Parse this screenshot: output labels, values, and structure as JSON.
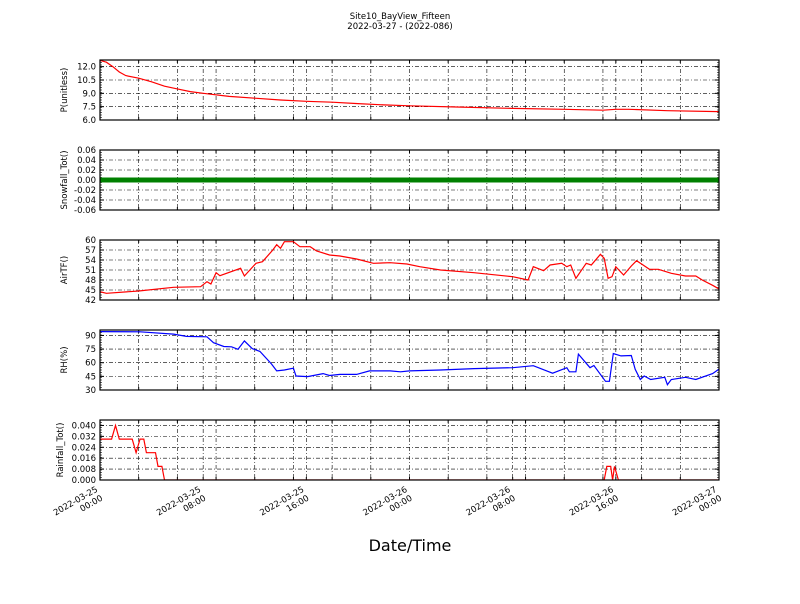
{
  "title": "Site10_BayView_Fifteen",
  "subtitle": "2022-03-27 - (2022-086)",
  "xlabel": "Date/Time",
  "chart_data": [
    {
      "type": "line",
      "ylabel": "P(unitless)",
      "color": "#ff0000",
      "xlim": [
        "2022-03-25 00:00",
        "2022-03-27 00:00"
      ],
      "ylim": [
        6.0,
        12.75
      ],
      "yticks": [
        "6.0",
        "7.5",
        "9.0",
        "10.5",
        "12.0"
      ],
      "grid": true,
      "points": [
        [
          "2022-03-25 00:00",
          12.7
        ],
        [
          "2022-03-25 00:30",
          12.5
        ],
        [
          "2022-03-25 01:00",
          12.0
        ],
        [
          "2022-03-25 01:30",
          11.4
        ],
        [
          "2022-03-25 02:00",
          11.0
        ],
        [
          "2022-03-25 03:00",
          10.7
        ],
        [
          "2022-03-25 04:00",
          10.3
        ],
        [
          "2022-03-25 05:00",
          9.8
        ],
        [
          "2022-03-25 06:00",
          9.5
        ],
        [
          "2022-03-25 07:00",
          9.2
        ],
        [
          "2022-03-25 08:00",
          9.0
        ],
        [
          "2022-03-25 10:00",
          8.65
        ],
        [
          "2022-03-25 12:00",
          8.45
        ],
        [
          "2022-03-25 14:00",
          8.25
        ],
        [
          "2022-03-25 16:00",
          8.1
        ],
        [
          "2022-03-25 18:00",
          8.0
        ],
        [
          "2022-03-25 20:00",
          7.85
        ],
        [
          "2022-03-25 22:00",
          7.7
        ],
        [
          "2022-03-26 00:00",
          7.6
        ],
        [
          "2022-03-26 04:00",
          7.45
        ],
        [
          "2022-03-26 08:00",
          7.3
        ],
        [
          "2022-03-26 12:00",
          7.2
        ],
        [
          "2022-03-26 15:00",
          7.1
        ],
        [
          "2022-03-26 16:00",
          7.2
        ],
        [
          "2022-03-26 17:00",
          7.2
        ],
        [
          "2022-03-26 20:00",
          7.05
        ],
        [
          "2022-03-27 00:00",
          6.95
        ]
      ]
    },
    {
      "type": "line",
      "ylabel": "Snowfall_Tot()",
      "color": "#008000",
      "xlim": [
        "2022-03-25 00:00",
        "2022-03-27 00:00"
      ],
      "ylim": [
        -0.06,
        0.06
      ],
      "yticks": [
        "-0.06",
        "-0.04",
        "-0.02",
        "0.00",
        "0.02",
        "0.04",
        "0.06"
      ],
      "grid": true,
      "points": [
        [
          "2022-03-25 00:00",
          0
        ],
        [
          "2022-03-27 00:00",
          0
        ]
      ]
    },
    {
      "type": "line",
      "ylabel": "AirTF()",
      "color": "#ff0000",
      "xlim": [
        "2022-03-25 00:00",
        "2022-03-27 00:00"
      ],
      "ylim": [
        42,
        60
      ],
      "yticks": [
        "42",
        "45",
        "48",
        "51",
        "54",
        "57",
        "60"
      ],
      "grid": true,
      "points": [
        [
          "2022-03-25 00:00",
          44.5
        ],
        [
          "2022-03-25 00:30",
          44.0
        ],
        [
          "2022-03-25 03:00",
          44.7
        ],
        [
          "2022-03-25 05:42",
          45.8
        ],
        [
          "2022-03-25 07:48",
          46.0
        ],
        [
          "2022-03-25 08:18",
          47.5
        ],
        [
          "2022-03-25 08:36",
          46.8
        ],
        [
          "2022-03-25 09:00",
          50.2
        ],
        [
          "2022-03-25 09:18",
          49.3
        ],
        [
          "2022-03-25 10:54",
          51.5
        ],
        [
          "2022-03-25 11:12",
          49.2
        ],
        [
          "2022-03-25 12:06",
          53.0
        ],
        [
          "2022-03-25 12:36",
          53.5
        ],
        [
          "2022-03-25 13:24",
          57.0
        ],
        [
          "2022-03-25 13:42",
          58.6
        ],
        [
          "2022-03-25 14:00",
          57.5
        ],
        [
          "2022-03-25 14:18",
          59.5
        ],
        [
          "2022-03-25 15:00",
          59.5
        ],
        [
          "2022-03-25 15:30",
          58.0
        ],
        [
          "2022-03-25 16:18",
          58.0
        ],
        [
          "2022-03-25 16:48",
          56.7
        ],
        [
          "2022-03-25 17:48",
          55.5
        ],
        [
          "2022-03-25 18:36",
          55.2
        ],
        [
          "2022-03-25 19:54",
          54.3
        ],
        [
          "2022-03-25 21:12",
          53.0
        ],
        [
          "2022-03-25 22:30",
          53.2
        ],
        [
          "2022-03-25 23:48",
          52.8
        ],
        [
          "2022-03-26 00:48",
          52.0
        ],
        [
          "2022-03-26 02:24",
          51.0
        ],
        [
          "2022-03-26 05:00",
          50.2
        ],
        [
          "2022-03-26 08:00",
          49.0
        ],
        [
          "2022-03-26 09:12",
          48.0
        ],
        [
          "2022-03-26 09:36",
          52.0
        ],
        [
          "2022-03-26 10:24",
          50.8
        ],
        [
          "2022-03-26 10:54",
          52.5
        ],
        [
          "2022-03-26 11:48",
          53.0
        ],
        [
          "2022-03-26 12:12",
          52.0
        ],
        [
          "2022-03-26 12:30",
          52.5
        ],
        [
          "2022-03-26 12:54",
          48.5
        ],
        [
          "2022-03-26 13:42",
          53.0
        ],
        [
          "2022-03-26 14:06",
          52.5
        ],
        [
          "2022-03-26 14:48",
          55.7
        ],
        [
          "2022-03-26 15:06",
          54.5
        ],
        [
          "2022-03-26 15:24",
          48.5
        ],
        [
          "2022-03-26 15:42",
          49.0
        ],
        [
          "2022-03-26 16:00",
          52.0
        ],
        [
          "2022-03-26 16:36",
          49.5
        ],
        [
          "2022-03-26 17:12",
          52.2
        ],
        [
          "2022-03-26 17:36",
          53.8
        ],
        [
          "2022-03-26 18:00",
          52.8
        ],
        [
          "2022-03-26 18:36",
          51.2
        ],
        [
          "2022-03-26 19:18",
          51.2
        ],
        [
          "2022-03-26 20:18",
          50.0
        ],
        [
          "2022-03-26 21:24",
          49.2
        ],
        [
          "2022-03-26 22:12",
          49.2
        ],
        [
          "2022-03-26 22:42",
          48.0
        ],
        [
          "2022-03-26 23:30",
          46.4
        ],
        [
          "2022-03-27 00:00",
          45.3
        ]
      ]
    },
    {
      "type": "line",
      "ylabel": "RH(%)",
      "color": "#0000ff",
      "xlim": [
        "2022-03-25 00:00",
        "2022-03-27 00:00"
      ],
      "ylim": [
        30,
        96
      ],
      "yticks": [
        "30",
        "45",
        "60",
        "75",
        "90"
      ],
      "grid": true,
      "points": [
        [
          "2022-03-25 00:00",
          94.2
        ],
        [
          "2022-03-25 03:06",
          94.0
        ],
        [
          "2022-03-25 05:42",
          91.5
        ],
        [
          "2022-03-25 06:42",
          89.0
        ],
        [
          "2022-03-25 08:18",
          88.5
        ],
        [
          "2022-03-25 08:48",
          82.0
        ],
        [
          "2022-03-25 09:36",
          77.8
        ],
        [
          "2022-03-25 10:12",
          77.5
        ],
        [
          "2022-03-25 10:42",
          74.8
        ],
        [
          "2022-03-25 11:12",
          84.0
        ],
        [
          "2022-03-25 11:48",
          75.5
        ],
        [
          "2022-03-25 12:24",
          72.5
        ],
        [
          "2022-03-25 13:18",
          58.6
        ],
        [
          "2022-03-25 13:42",
          51.0
        ],
        [
          "2022-03-25 14:18",
          52.0
        ],
        [
          "2022-03-25 15:00",
          54.0
        ],
        [
          "2022-03-25 15:12",
          45.4
        ],
        [
          "2022-03-25 16:06",
          44.7
        ],
        [
          "2022-03-25 17:18",
          48.0
        ],
        [
          "2022-03-25 17:48",
          46.0
        ],
        [
          "2022-03-25 18:36",
          47.2
        ],
        [
          "2022-03-25 19:54",
          47.2
        ],
        [
          "2022-03-25 20:54",
          51.0
        ],
        [
          "2022-03-25 22:30",
          51.0
        ],
        [
          "2022-03-25 23:18",
          50.0
        ],
        [
          "2022-03-26 00:00",
          51.0
        ],
        [
          "2022-03-26 02:24",
          52.0
        ],
        [
          "2022-03-26 05:00",
          53.5
        ],
        [
          "2022-03-26 08:00",
          54.5
        ],
        [
          "2022-03-26 09:36",
          56.7
        ],
        [
          "2022-03-26 11:06",
          48.5
        ],
        [
          "2022-03-26 12:12",
          54.5
        ],
        [
          "2022-03-26 12:24",
          50.0
        ],
        [
          "2022-03-26 12:54",
          50.0
        ],
        [
          "2022-03-26 13:06",
          69.5
        ],
        [
          "2022-03-26 14:00",
          54.5
        ],
        [
          "2022-03-26 14:18",
          57.0
        ],
        [
          "2022-03-26 15:12",
          39.6
        ],
        [
          "2022-03-26 15:30",
          39.6
        ],
        [
          "2022-03-26 15:48",
          70.2
        ],
        [
          "2022-03-26 16:24",
          67.5
        ],
        [
          "2022-03-26 17:12",
          68.0
        ],
        [
          "2022-03-26 17:30",
          52.8
        ],
        [
          "2022-03-26 17:54",
          41.5
        ],
        [
          "2022-03-26 18:12",
          45.4
        ],
        [
          "2022-03-26 18:42",
          41.5
        ],
        [
          "2022-03-26 19:48",
          44.0
        ],
        [
          "2022-03-26 20:00",
          35.8
        ],
        [
          "2022-03-26 20:18",
          41.5
        ],
        [
          "2022-03-26 21:24",
          44.0
        ],
        [
          "2022-03-26 22:12",
          41.5
        ],
        [
          "2022-03-26 23:30",
          48.0
        ],
        [
          "2022-03-27 00:00",
          53.0
        ]
      ]
    },
    {
      "type": "line",
      "ylabel": "Rainfall_Tot()",
      "color": "#ff0000",
      "xlim": [
        "2022-03-25 00:00",
        "2022-03-27 00:00"
      ],
      "ylim": [
        0,
        0.044
      ],
      "yticks": [
        "0.000",
        "0.008",
        "0.016",
        "0.024",
        "0.032",
        "0.040"
      ],
      "grid": true,
      "points": [
        [
          "2022-03-25 00:00",
          0.03
        ],
        [
          "2022-03-25 00:54",
          0.03
        ],
        [
          "2022-03-25 01:12",
          0.04
        ],
        [
          "2022-03-25 01:30",
          0.03
        ],
        [
          "2022-03-25 02:30",
          0.03
        ],
        [
          "2022-03-25 02:48",
          0.02
        ],
        [
          "2022-03-25 03:06",
          0.03
        ],
        [
          "2022-03-25 03:24",
          0.03
        ],
        [
          "2022-03-25 03:36",
          0.02
        ],
        [
          "2022-03-25 04:18",
          0.02
        ],
        [
          "2022-03-25 04:30",
          0.01
        ],
        [
          "2022-03-25 04:48",
          0.01
        ],
        [
          "2022-03-25 05:00",
          0
        ],
        [
          "2022-03-26 15:06",
          0
        ],
        [
          "2022-03-26 15:18",
          0.01
        ],
        [
          "2022-03-26 15:36",
          0.01
        ],
        [
          "2022-03-26 15:45",
          0
        ],
        [
          "2022-03-26 15:54",
          0.01
        ],
        [
          "2022-03-26 16:12",
          0
        ],
        [
          "2022-03-27 00:00",
          0
        ]
      ]
    }
  ],
  "xticks": [
    {
      "date": "2022-03-25",
      "time": "00:00",
      "at": "2022-03-25 00:00"
    },
    {
      "date": "2022-03-25",
      "time": "08:00",
      "at": "2022-03-25 08:00"
    },
    {
      "date": "2022-03-25",
      "time": "16:00",
      "at": "2022-03-25 16:00"
    },
    {
      "date": "2022-03-26",
      "time": "00:00",
      "at": "2022-03-26 00:00"
    },
    {
      "date": "2022-03-26",
      "time": "08:00",
      "at": "2022-03-26 08:00"
    },
    {
      "date": "2022-03-26",
      "time": "16:00",
      "at": "2022-03-26 16:00"
    },
    {
      "date": "2022-03-27",
      "time": "00:00",
      "at": "2022-03-27 00:00"
    }
  ]
}
